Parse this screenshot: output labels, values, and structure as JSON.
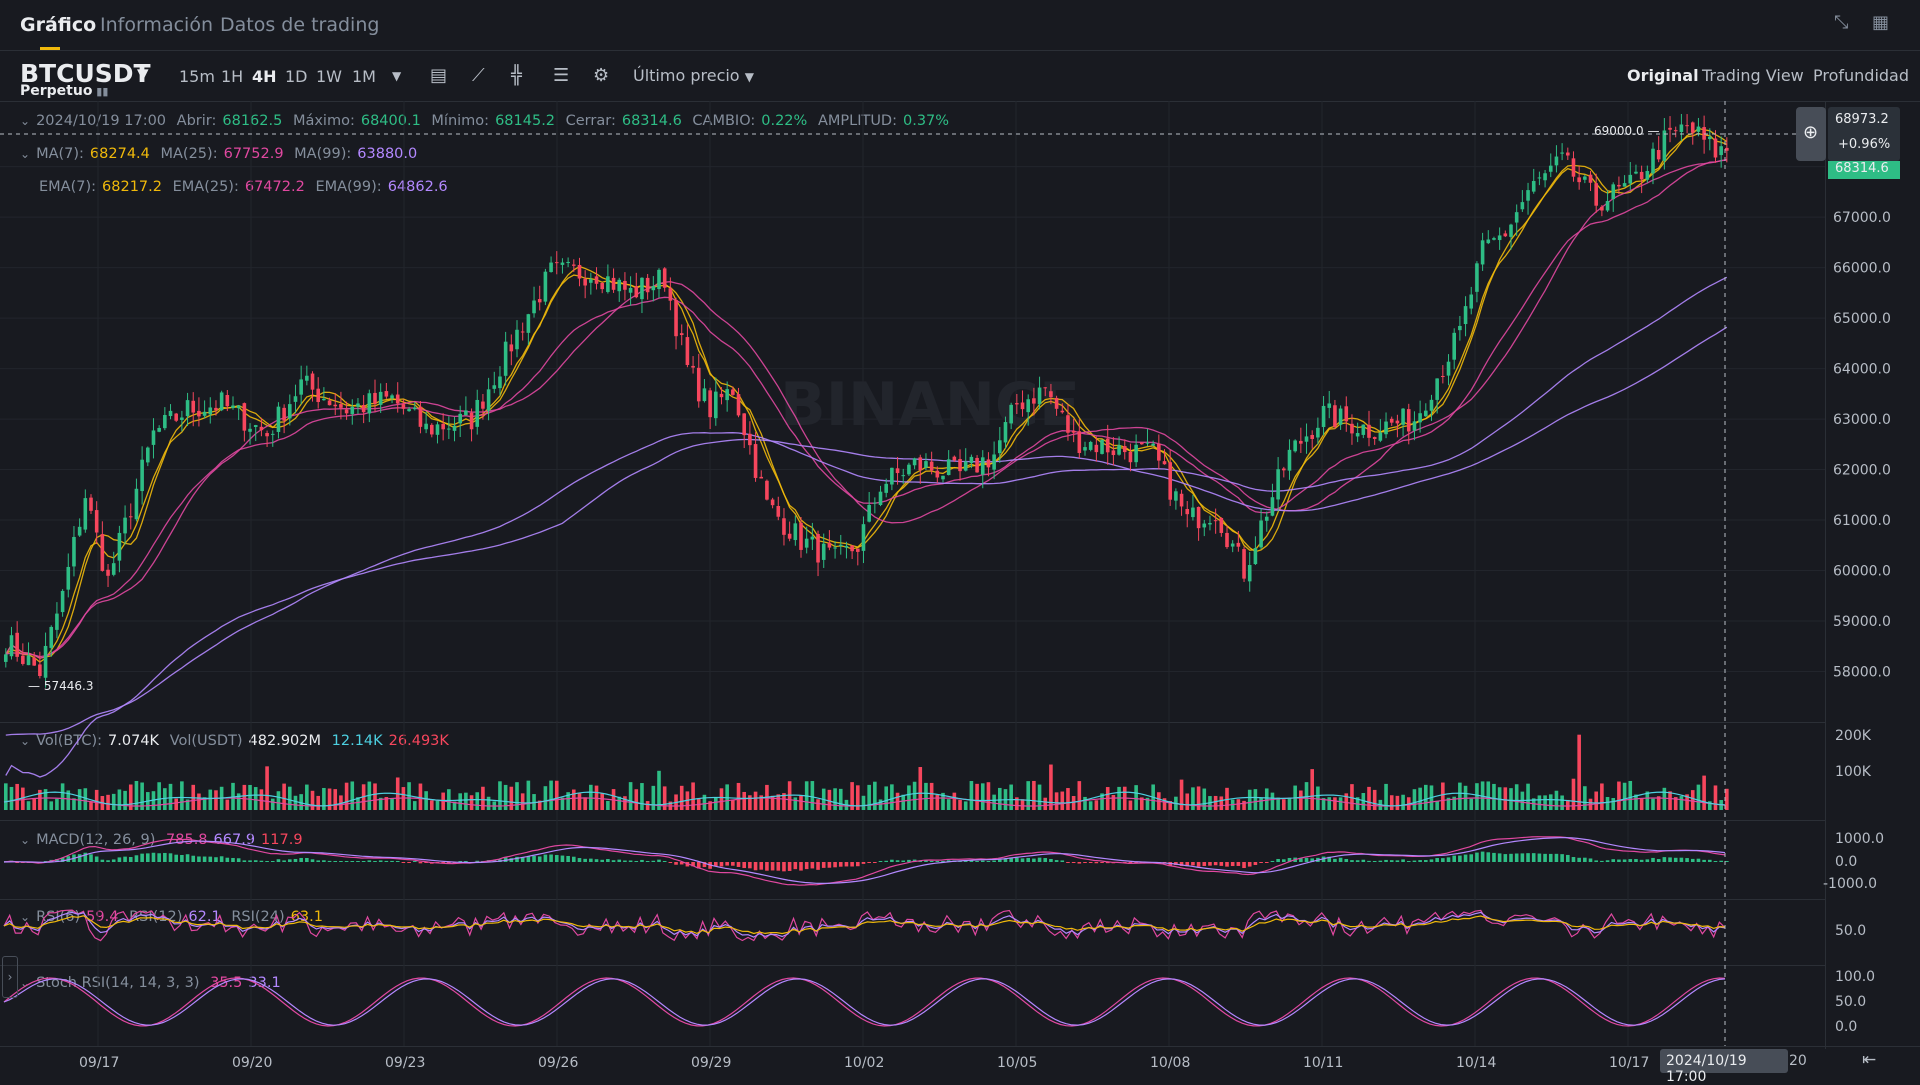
{
  "tabs": [
    {
      "label": "Gráfico",
      "active": true
    },
    {
      "label": "Información",
      "active": false
    },
    {
      "label": "Datos de trading",
      "active": false
    }
  ],
  "top_icons": [
    "collapse-icon",
    "grid-icon"
  ],
  "symbol": {
    "name": "BTCUSDT",
    "type": "Perpetuo"
  },
  "intervals": [
    {
      "label": "15m",
      "active": false
    },
    {
      "label": "1H",
      "active": false
    },
    {
      "label": "4H",
      "active": true
    },
    {
      "label": "1D",
      "active": false
    },
    {
      "label": "1W",
      "active": false
    },
    {
      "label": "1M",
      "active": false
    }
  ],
  "toolbar_icons": [
    "chevron-down-icon",
    "calendar-icon",
    "indicator-icon",
    "candle-type-icon",
    "layout-icon",
    "settings-icon"
  ],
  "price_type": "Último precio",
  "views": [
    {
      "label": "Original",
      "active": true
    },
    {
      "label": "Trading View",
      "active": false
    },
    {
      "label": "Profundidad",
      "active": false
    }
  ],
  "ohlc": {
    "date": "2024/10/19 17:00",
    "open_label": "Abrir:",
    "open": "68162.5",
    "high_label": "Máximo:",
    "high": "68400.1",
    "low_label": "Mínimo:",
    "low": "68145.2",
    "close_label": "Cerrar:",
    "close": "68314.6",
    "change_label": "CAMBIO:",
    "change": "0.22%",
    "amp_label": "AMPLITUD:",
    "amp": "0.37%"
  },
  "ma": {
    "l7": "MA(7):",
    "v7": "68274.4",
    "l25": "MA(25):",
    "v25": "67752.9",
    "l99": "MA(99):",
    "v99": "63880.0"
  },
  "ema": {
    "l7": "EMA(7):",
    "v7": "68217.2",
    "l25": "EMA(25):",
    "v25": "67472.2",
    "l99": "EMA(99):",
    "v99": "64862.6"
  },
  "vol": {
    "l1": "Vol(BTC):",
    "v1": "7.074K",
    "l2": "Vol(USDT)",
    "v2": "482.902M",
    "v3": "12.14K",
    "v4": "26.493K"
  },
  "macd": {
    "label": "MACD(12, 26, 9)",
    "v1": "785.8",
    "v2": "667.9",
    "v3": "117.9"
  },
  "rsi": {
    "l6": "RSI(6)",
    "v6": "59.4",
    "l12": "RSI(12)",
    "v12": "62.1",
    "l24": "RSI(24)",
    "v24": "63.1"
  },
  "stoch": {
    "label": "Stoch RSI(14, 14, 3, 3)",
    "v1": "35.5",
    "v2": "33.1"
  },
  "price_box": {
    "price": "68973.2",
    "pct": "+0.96%",
    "last": "68314.6"
  },
  "markers": {
    "high": "69000.0",
    "low": "57446.3"
  },
  "x_label_crosshair": "2024/10/19 17:00",
  "x_label_tail": "20",
  "colors": {
    "up": "#2ebd85",
    "down": "#f6465d",
    "ma7": "#f0b90b",
    "ma25": "#e048a0",
    "ma99": "#b388ff",
    "bg": "#181a20"
  },
  "chart_data": {
    "type": "candlestick",
    "interval": "4H",
    "ylim": [
      57000,
      69300
    ],
    "y_ticks": [
      "58000.0",
      "59000.0",
      "60000.0",
      "61000.0",
      "62000.0",
      "63000.0",
      "64000.0",
      "65000.0",
      "66000.0",
      "67000.0",
      "68000.0"
    ],
    "x_tick_labels": [
      "09/17",
      "09/20",
      "09/23",
      "09/26",
      "09/29",
      "10/02",
      "10/05",
      "10/08",
      "10/11",
      "10/14",
      "10/17"
    ],
    "waypoints": [
      [
        0,
        58600
      ],
      [
        6,
        58000
      ],
      [
        10,
        59500
      ],
      [
        14,
        61500
      ],
      [
        18,
        59800
      ],
      [
        26,
        62700
      ],
      [
        32,
        63200
      ],
      [
        38,
        63300
      ],
      [
        46,
        62700
      ],
      [
        52,
        63700
      ],
      [
        60,
        63200
      ],
      [
        68,
        63400
      ],
      [
        74,
        62800
      ],
      [
        82,
        63000
      ],
      [
        90,
        64700
      ],
      [
        96,
        65900
      ],
      [
        104,
        65900
      ],
      [
        110,
        65500
      ],
      [
        116,
        65800
      ],
      [
        120,
        64000
      ],
      [
        124,
        63200
      ],
      [
        128,
        63600
      ],
      [
        134,
        61300
      ],
      [
        140,
        60600
      ],
      [
        146,
        60200
      ],
      [
        150,
        60500
      ],
      [
        154,
        61700
      ],
      [
        160,
        62100
      ],
      [
        168,
        61900
      ],
      [
        174,
        62300
      ],
      [
        178,
        63300
      ],
      [
        183,
        63600
      ],
      [
        188,
        62600
      ],
      [
        196,
        62400
      ],
      [
        202,
        62300
      ],
      [
        208,
        61000
      ],
      [
        213,
        61200
      ],
      [
        218,
        60000
      ],
      [
        222,
        61200
      ],
      [
        226,
        62300
      ],
      [
        232,
        63100
      ],
      [
        240,
        62800
      ],
      [
        248,
        63000
      ],
      [
        256,
        64700
      ],
      [
        260,
        66300
      ],
      [
        264,
        66700
      ],
      [
        268,
        67500
      ],
      [
        274,
        68100
      ],
      [
        280,
        67300
      ],
      [
        286,
        67600
      ],
      [
        292,
        68500
      ],
      [
        296,
        68800
      ],
      [
        301,
        68300
      ],
      [
        303,
        68314.6
      ]
    ],
    "series": [
      {
        "name": "MA(7)",
        "value": 68274.4
      },
      {
        "name": "MA(25)",
        "value": 67752.9
      },
      {
        "name": "MA(99)",
        "value": 63880.0
      },
      {
        "name": "EMA(7)",
        "value": 68217.2
      },
      {
        "name": "EMA(25)",
        "value": 67472.2
      },
      {
        "name": "EMA(99)",
        "value": 64862.6
      }
    ],
    "volume_ticks": [
      "200K",
      "100K"
    ],
    "macd_ticks": [
      "1000.0",
      "0.0",
      "-1000.0"
    ],
    "rsi_ticks": [
      "50.0"
    ],
    "stoch_ticks": [
      "100.0",
      "50.0",
      "0.0"
    ]
  }
}
